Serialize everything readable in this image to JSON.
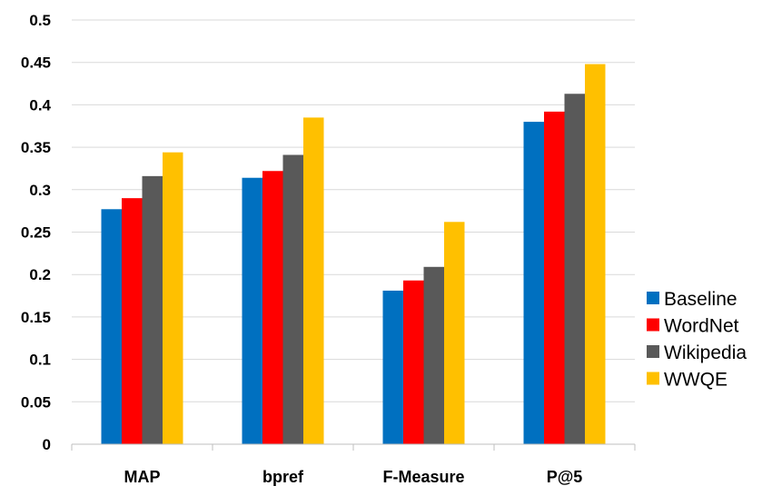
{
  "chart_data": {
    "type": "bar",
    "categories": [
      "MAP",
      "bpref",
      "F-Measure",
      "P@5"
    ],
    "series": [
      {
        "name": "Baseline",
        "color": "#0070C0",
        "values": [
          0.277,
          0.314,
          0.181,
          0.38
        ]
      },
      {
        "name": "WordNet",
        "color": "#FF0000",
        "values": [
          0.29,
          0.322,
          0.193,
          0.392
        ]
      },
      {
        "name": "Wikipedia",
        "color": "#595959",
        "values": [
          0.316,
          0.341,
          0.209,
          0.413
        ]
      },
      {
        "name": "WWQE",
        "color": "#FFC000",
        "values": [
          0.344,
          0.385,
          0.262,
          0.448
        ]
      }
    ],
    "yticks": [
      "0",
      "0.05",
      "0.1",
      "0.15",
      "0.2",
      "0.25",
      "0.3",
      "0.35",
      "0.4",
      "0.45",
      "0.5"
    ],
    "ylim": [
      0,
      0.5
    ],
    "grid": true,
    "legend": "right",
    "title": "",
    "xlabel": "",
    "ylabel": ""
  }
}
